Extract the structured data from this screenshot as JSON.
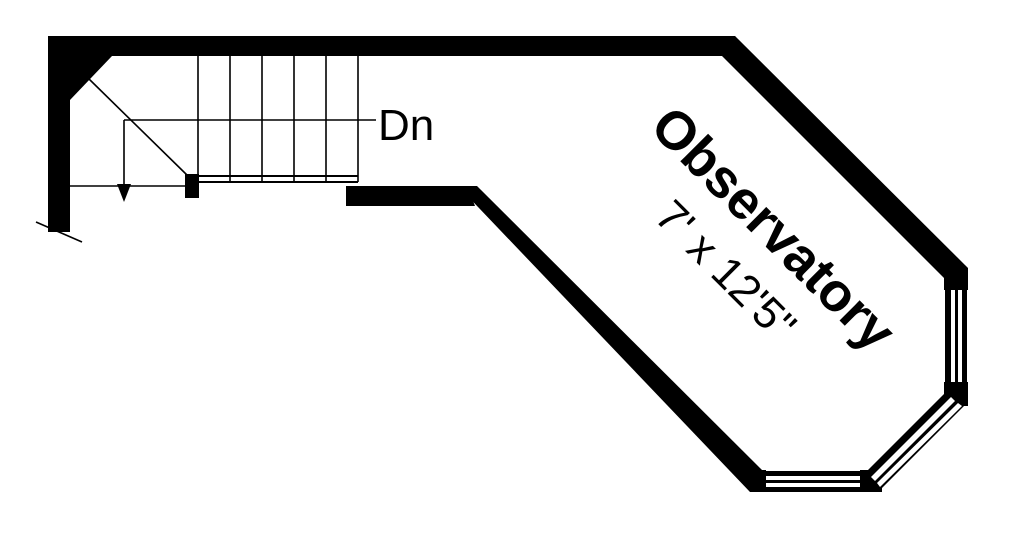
{
  "plan": {
    "direction_label": "Dn",
    "room": {
      "name": "Observatory",
      "dimensions": "7' x 12'5\""
    }
  },
  "colors": {
    "ink": "#000000",
    "paper": "#ffffff"
  }
}
